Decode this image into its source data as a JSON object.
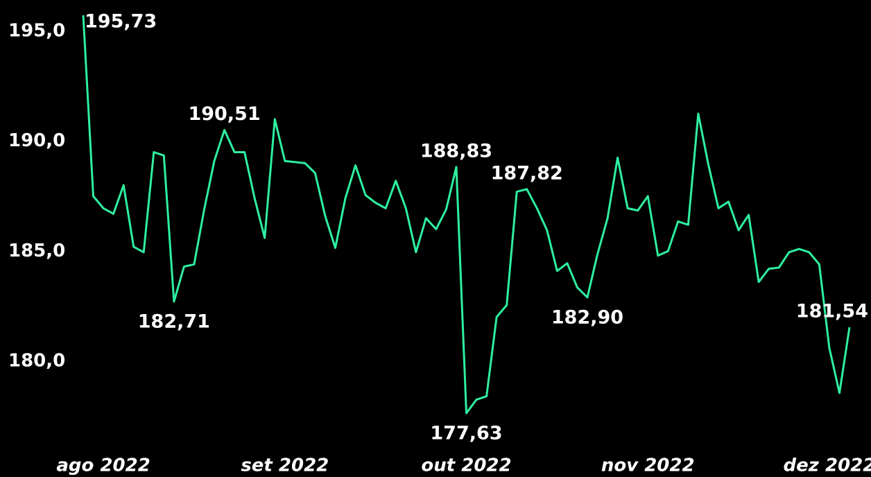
{
  "chart_data": {
    "type": "line",
    "categories": [
      null,
      null,
      "ago 2022",
      null,
      null,
      null,
      null,
      null,
      null,
      null,
      null,
      null,
      null,
      null,
      null,
      null,
      null,
      null,
      null,
      null,
      "set 2022",
      null,
      null,
      null,
      null,
      null,
      null,
      null,
      null,
      null,
      null,
      null,
      null,
      null,
      null,
      null,
      null,
      null,
      "out 2022",
      null,
      null,
      null,
      null,
      null,
      null,
      null,
      null,
      null,
      null,
      null,
      null,
      null,
      null,
      null,
      null,
      null,
      "nov 2022",
      null,
      null,
      null,
      null,
      null,
      null,
      null,
      null,
      null,
      null,
      null,
      null,
      null,
      null,
      null,
      null,
      null,
      "dez 2022",
      null,
      null
    ],
    "series": [
      {
        "color": "#2ef0a0",
        "values": [
          195.73,
          187.5,
          186.95,
          186.7,
          188.0,
          185.2,
          184.95,
          189.5,
          189.35,
          182.71,
          184.3,
          184.4,
          186.9,
          189.1,
          190.51,
          189.5,
          189.5,
          187.4,
          185.6,
          191.0,
          189.1,
          189.05,
          189.0,
          188.55,
          186.6,
          185.15,
          187.4,
          188.9,
          187.55,
          187.2,
          186.95,
          188.2,
          186.95,
          184.95,
          186.5,
          186.0,
          186.9,
          188.83,
          177.63,
          178.25,
          178.4,
          182.0,
          182.55,
          187.7,
          187.82,
          186.95,
          185.95,
          184.1,
          184.45,
          183.35,
          182.9,
          184.85,
          186.5,
          189.25,
          186.95,
          186.85,
          187.5,
          184.8,
          185.0,
          186.35,
          186.2,
          191.25,
          188.95,
          186.95,
          187.25,
          185.95,
          186.65,
          183.6,
          184.2,
          184.25,
          184.95,
          185.1,
          184.95,
          184.4,
          180.6,
          178.55,
          181.54
        ],
        "value_labels": [
          "195,73",
          null,
          null,
          null,
          null,
          null,
          null,
          null,
          null,
          "182,71",
          null,
          null,
          null,
          null,
          "190,51",
          null,
          null,
          null,
          null,
          null,
          null,
          null,
          null,
          null,
          null,
          null,
          null,
          null,
          null,
          null,
          null,
          null,
          null,
          null,
          null,
          null,
          null,
          "188,83",
          "177,63",
          null,
          null,
          null,
          null,
          null,
          "187,82",
          null,
          null,
          null,
          null,
          null,
          "182,90",
          null,
          null,
          null,
          null,
          null,
          null,
          null,
          null,
          null,
          null,
          null,
          null,
          null,
          null,
          null,
          null,
          null,
          null,
          null,
          null,
          null,
          null,
          null,
          null,
          null,
          "181,54"
        ]
      }
    ],
    "ylim": [
      177,
      196.2
    ],
    "yticks": [
      {
        "value": 180,
        "label": "180,0"
      },
      {
        "value": 185,
        "label": "185,0"
      },
      {
        "value": 190,
        "label": "190,0"
      },
      {
        "value": 195,
        "label": "195,0"
      }
    ],
    "grid": false
  }
}
